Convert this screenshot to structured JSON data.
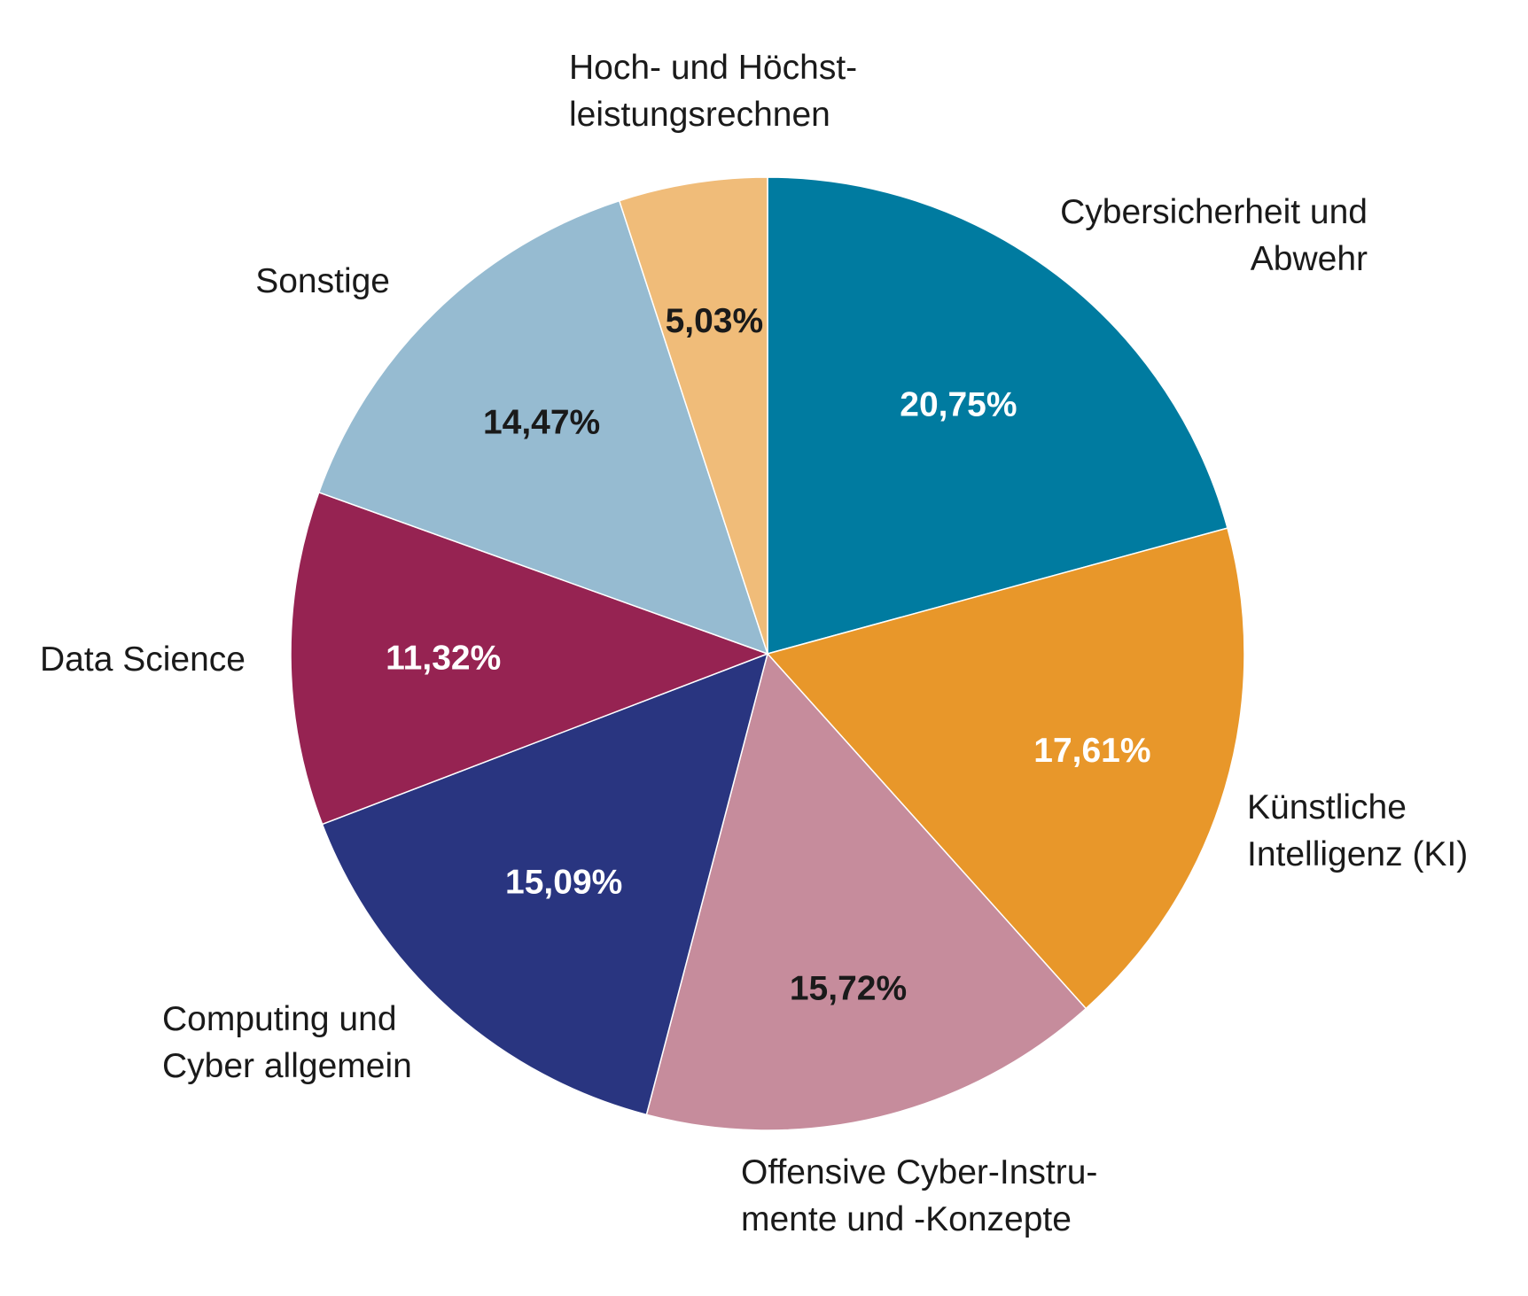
{
  "chart_data": {
    "type": "pie",
    "start": "12 o'clock, clockwise",
    "slices": [
      {
        "name": "Cybersicherheit und Abwehr",
        "label_lines": [
          "Cybersicherheit und",
          "Abwehr"
        ],
        "value": 20.75,
        "value_label": "20,75%",
        "color": "#007ba0",
        "value_text_color": "#ffffff"
      },
      {
        "name": "Künstliche Intelligenz (KI)",
        "label_lines": [
          "Künstliche",
          "Intelligenz (KI)"
        ],
        "value": 17.61,
        "value_label": "17,61%",
        "color": "#e8972a",
        "value_text_color": "#ffffff"
      },
      {
        "name": "Offensive Cyber-Instrumente und -Konzepte",
        "label_lines": [
          "Offensive Cyber-Instru-",
          "mente und -Konzepte"
        ],
        "value": 15.72,
        "value_label": "15,72%",
        "color": "#c68c9c",
        "value_text_color": "#1a1a1a"
      },
      {
        "name": "Computing und Cyber allgemein",
        "label_lines": [
          "Computing und",
          "Cyber allgemein"
        ],
        "value": 15.09,
        "value_label": "15,09%",
        "color": "#293580",
        "value_text_color": "#ffffff"
      },
      {
        "name": "Data Science",
        "label_lines": [
          "Data Science"
        ],
        "value": 11.32,
        "value_label": "11,32%",
        "color": "#962352",
        "value_text_color": "#ffffff"
      },
      {
        "name": "Sonstige",
        "label_lines": [
          "Sonstige"
        ],
        "value": 14.47,
        "value_label": "14,47%",
        "color": "#96bbd1",
        "value_text_color": "#1a1a1a"
      },
      {
        "name": "Hoch- und Höchstleistungsrechnen",
        "label_lines": [
          "Hoch- und Höchst-",
          "leistungsrechnen"
        ],
        "value": 5.03,
        "value_label": "5,03%",
        "color": "#f0bc79",
        "value_text_color": "#1a1a1a"
      }
    ]
  }
}
